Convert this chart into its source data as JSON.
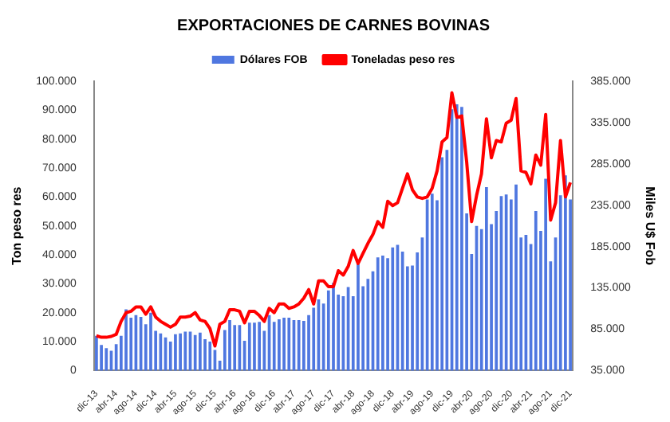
{
  "chart_data": {
    "type": "bar",
    "title": "EXPORTACIONES DE CARNES BOVINAS",
    "ylabel": "Ton peso res",
    "y2label": "Miles U$ Fob",
    "categories": [
      "dic-13",
      null,
      null,
      null,
      "abr-14",
      null,
      null,
      null,
      "ago-14",
      null,
      null,
      null,
      "dic-14",
      null,
      null,
      null,
      "abr-15",
      null,
      null,
      null,
      "ago-15",
      null,
      null,
      null,
      "dic-15",
      null,
      null,
      null,
      "abr-16",
      null,
      null,
      null,
      "ago-16",
      null,
      null,
      null,
      "dic-16",
      null,
      null,
      null,
      "abr-17",
      null,
      null,
      null,
      "ago-17",
      null,
      null,
      null,
      "dic-17",
      null,
      null,
      null,
      "abr-18",
      null,
      null,
      null,
      "ago-18",
      null,
      null,
      null,
      "dic-18",
      null,
      null,
      null,
      "abr-19",
      null,
      null,
      null,
      "ago-19",
      null,
      null,
      null,
      "dic-19",
      null,
      null,
      null,
      "abr-20",
      null,
      null,
      null,
      "ago-20",
      null,
      null,
      null,
      "dic-20",
      null,
      null,
      null,
      "abr-21",
      null,
      null,
      null,
      "ago-21",
      null,
      null,
      null,
      "dic-21"
    ],
    "series": [
      {
        "name": "Dólares FOB",
        "axis": "y2",
        "color": "#4f77e0",
        "values": [
          77000,
          66000,
          62000,
          59000,
          67000,
          77000,
          109000,
          99000,
          102000,
          100000,
          91000,
          105000,
          83000,
          80000,
          75000,
          70000,
          79000,
          80000,
          82000,
          82000,
          78000,
          81000,
          73000,
          70000,
          60000,
          47000,
          84000,
          96000,
          90000,
          90000,
          71000,
          93000,
          93000,
          94000,
          83000,
          102000,
          94000,
          97000,
          99000,
          99000,
          96000,
          96000,
          95000,
          102000,
          111000,
          121000,
          116000,
          132000,
          141000,
          127000,
          125000,
          136000,
          125000,
          164000,
          137000,
          146000,
          155000,
          172000,
          174000,
          171000,
          184000,
          187000,
          179000,
          161000,
          162000,
          178000,
          196000,
          242000,
          249000,
          241000,
          293000,
          302000,
          351000,
          357000,
          354000,
          225000,
          176000,
          210000,
          206000,
          257000,
          212000,
          228000,
          246000,
          248000,
          242000,
          260000,
          196000,
          199000,
          188000,
          228000,
          204000,
          267000,
          167000,
          196000,
          247000,
          271000,
          242000
        ]
      },
      {
        "name": "Toneladas peso res",
        "type": "line",
        "axis": "y",
        "color": "#ff0000",
        "values": [
          12000,
          11500,
          11500,
          11800,
          12500,
          17000,
          20000,
          20500,
          22000,
          22000,
          19500,
          22000,
          18500,
          17000,
          16000,
          15000,
          16000,
          18500,
          18500,
          18800,
          20000,
          17500,
          17000,
          14500,
          8500,
          16000,
          17000,
          21000,
          21000,
          20500,
          16500,
          20500,
          20500,
          19000,
          17000,
          21500,
          20000,
          23000,
          23000,
          21500,
          22000,
          23000,
          25000,
          28000,
          23000,
          31000,
          31000,
          29000,
          29000,
          34500,
          33000,
          36000,
          41500,
          37000,
          40500,
          44000,
          47000,
          51500,
          49500,
          58500,
          57000,
          58000,
          63000,
          68000,
          62500,
          60000,
          59500,
          60000,
          63000,
          69000,
          79000,
          80500,
          96000,
          87500,
          88000,
          72000,
          51500,
          60500,
          68000,
          87000,
          73500,
          79500,
          79000,
          85500,
          86500,
          94000,
          69000,
          68500,
          64500,
          74500,
          71000,
          88500,
          52000,
          58000,
          79500,
          60000,
          65000
        ]
      }
    ],
    "ylim": [
      0,
      100000
    ],
    "yticks": [
      0,
      {
        "value": 10000,
        "label": "10.000"
      },
      {
        "value": 20000,
        "label": "20.000"
      },
      {
        "value": 30000,
        "label": "30.000"
      },
      {
        "value": 40000,
        "label": "40.000"
      },
      {
        "value": 50000,
        "label": "50.000"
      },
      {
        "value": 60000,
        "label": "60.000"
      },
      {
        "value": 70000,
        "label": "70.000"
      },
      {
        "value": 80000,
        "label": "80.000"
      },
      {
        "value": 90000,
        "label": "90.000"
      },
      {
        "value": 100000,
        "label": "100.000"
      }
    ],
    "y2lim": [
      35000,
      385000
    ],
    "y2ticks": [
      {
        "value": 35000,
        "label": "35.000"
      },
      {
        "value": 85000,
        "label": "85.000"
      },
      {
        "value": 135000,
        "label": "135.000"
      },
      {
        "value": 185000,
        "label": "185.000"
      },
      {
        "value": 235000,
        "label": "235.000"
      },
      {
        "value": 285000,
        "label": "285.000"
      },
      {
        "value": 335000,
        "label": "335.000"
      },
      {
        "value": 385000,
        "label": "385.000"
      }
    ],
    "legend": "top",
    "grid": false,
    "marker": "none"
  }
}
